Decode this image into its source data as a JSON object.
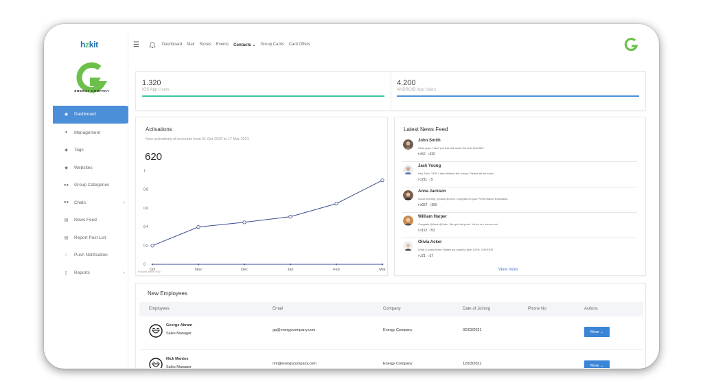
{
  "brand": {
    "prefix": "h",
    "accent": "z",
    "suffix": "kit"
  },
  "logo": {
    "company": "ENERGY COMPANY"
  },
  "sidebar": {
    "items": [
      {
        "label": "Dashboard",
        "icon": "dashboard-icon",
        "active": true
      },
      {
        "label": "Management",
        "icon": "user-icon"
      },
      {
        "label": "Tags",
        "icon": "tag-icon"
      },
      {
        "label": "Websites",
        "icon": "tag-icon"
      },
      {
        "label": "Group Categories",
        "icon": "users-icon"
      },
      {
        "label": "Chats",
        "icon": "users-icon",
        "chevron": true
      },
      {
        "label": "News Feed",
        "icon": "newspaper-icon"
      },
      {
        "label": "Report Post List",
        "icon": "newspaper-icon"
      },
      {
        "label": "Push Notification",
        "icon": "bell-icon"
      },
      {
        "label": "Reports",
        "icon": "file-icon",
        "chevron": true
      }
    ]
  },
  "topbar": {
    "nav": [
      "Dashboard",
      "Mail",
      "Stores",
      "Events",
      "Contacts ⌄",
      "Group Cards",
      "Card Offers"
    ]
  },
  "stats": [
    {
      "value": "1.320",
      "label": "IOS App Users",
      "color": "#3cc3a0"
    },
    {
      "value": "4.200",
      "label": "ANDROID App Users",
      "color": "#4a8fd8"
    }
  ],
  "activations": {
    "title": "Activations",
    "subtitle": "New activations of accounts from 01 Oct 2020 to 17 Mar 2021",
    "total": "620",
    "watermark": "FusionCharts Trial"
  },
  "chart_data": {
    "type": "line",
    "categories": [
      "Oct",
      "Nov",
      "Dec",
      "Jan",
      "Feb",
      "Mar"
    ],
    "series": [
      {
        "values": [
          0.2,
          0.4,
          0.45,
          0.51,
          0.65,
          0.9
        ]
      },
      {
        "values": [
          0,
          0,
          0,
          0,
          0,
          0
        ]
      }
    ],
    "yticks": [
      "0",
      "0.2",
      "0.4",
      "0.6",
      "0.8",
      "1"
    ],
    "ylim": [
      0,
      1
    ],
    "line_color": "#3b4d8f"
  },
  "news": {
    "title": "Latest News Feed",
    "items": [
      {
        "name": "John Smith",
        "msg": "Hello guys. Have you learned about the new benefits?",
        "likes": "52",
        "comments": "320"
      },
      {
        "name": "Jack Young",
        "msg": "Hey John. YES! I also finished the survey. Please let me know.",
        "likes": "211",
        "comments": "5"
      },
      {
        "name": "Anna Jackson",
        "msg": "Good morning, @Jack @John. Congrats on your Performance Evaluation.",
        "likes": "657",
        "comments": "356"
      },
      {
        "name": "William Harper",
        "msg": "Congrats @Jack @John. We got that push. You're our heros now!",
        "likes": "112",
        "comments": "53"
      },
      {
        "name": "Olivia Acker",
        "msg": "What a lovely team. Makes you want to give 100%. CHEERS!",
        "likes": "21",
        "comments": "17"
      }
    ],
    "view_more": "View more"
  },
  "employees": {
    "title": "New Employees",
    "headers": [
      "Employees",
      "Email",
      "Company",
      "Date of Joining",
      "Phone No",
      "Actions"
    ],
    "rows": [
      {
        "name": "George Abram",
        "role": "Sales Manager",
        "email": "ga@energycompany.com",
        "company": "Energy Company",
        "date": "02/03/2021",
        "phone": "",
        "action": "More ⌄"
      },
      {
        "name": "Nick Mantos",
        "role": "Sales Manager",
        "email": "nm@energycompany.com",
        "company": "Energy Company",
        "date": "12/03/2021",
        "phone": "",
        "action": "More ⌄"
      }
    ]
  }
}
